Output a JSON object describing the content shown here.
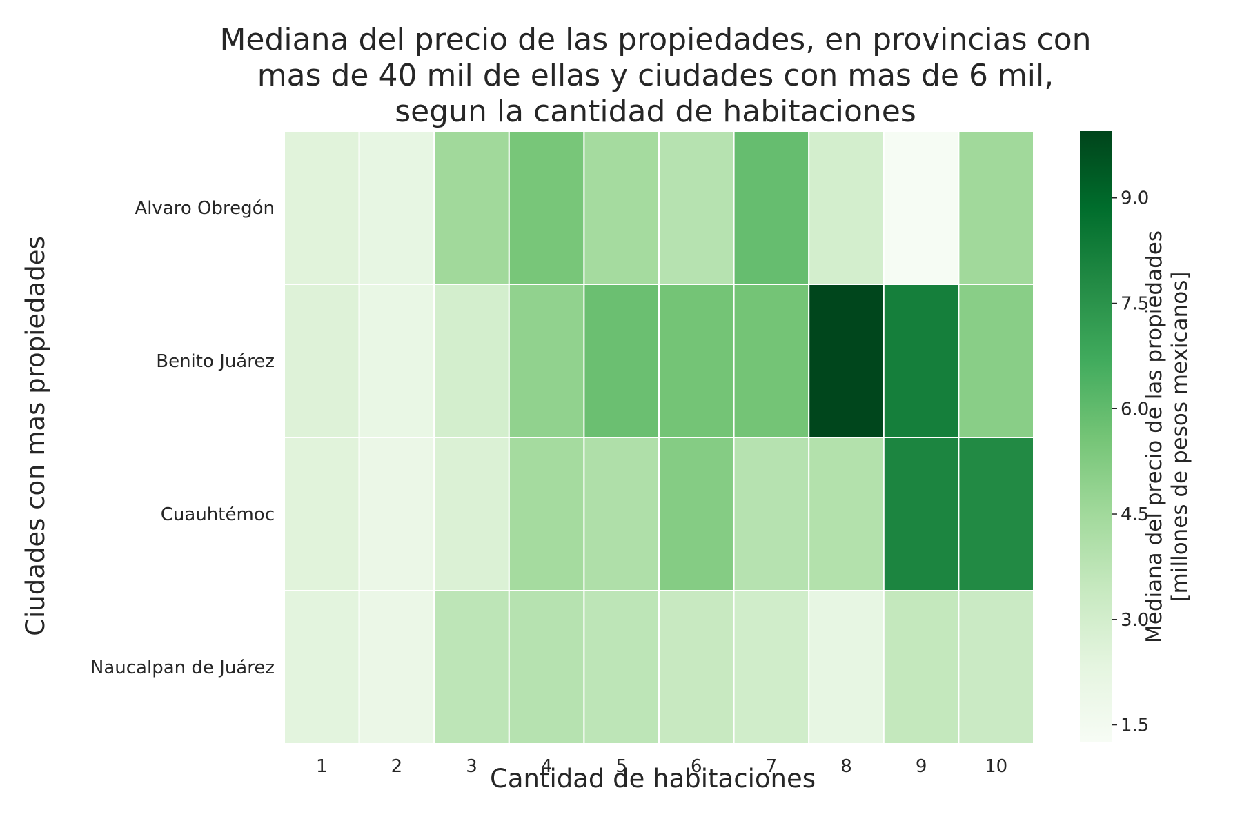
{
  "chart_data": {
    "type": "heatmap",
    "title": [
      "Mediana del precio de las propiedades, en provincias con",
      "mas de 40 mil de ellas y ciudades con mas de 6 mil,",
      "segun la cantidad de habitaciones"
    ],
    "xlabel": "Cantidad de habitaciones",
    "ylabel": "Ciudades con mas propiedades",
    "x_categories": [
      "1",
      "2",
      "3",
      "4",
      "5",
      "6",
      "7",
      "8",
      "9",
      "10"
    ],
    "y_categories": [
      "Alvaro Obregón",
      "Benito Juárez",
      "Cuauhtémoc",
      "Naucalpan de Juárez"
    ],
    "values": [
      [
        2.5,
        2.2,
        4.5,
        5.5,
        4.4,
        3.9,
        5.9,
        3.0,
        1.3,
        4.5
      ],
      [
        2.6,
        2.1,
        3.0,
        4.9,
        5.8,
        5.6,
        5.6,
        9.9,
        8.2,
        5.1
      ],
      [
        2.5,
        2.0,
        2.7,
        4.4,
        4.1,
        5.2,
        3.9,
        4.0,
        8.0,
        7.8
      ],
      [
        2.4,
        2.0,
        3.7,
        3.9,
        3.7,
        3.4,
        3.1,
        2.2,
        3.5,
        3.3
      ]
    ],
    "colorbar": {
      "label": [
        "Mediana del precio de las propiedades",
        "[millones de pesos mexicanos]"
      ],
      "ticks": [
        "1.5",
        "3.0",
        "4.5",
        "6.0",
        "7.5",
        "9.0"
      ],
      "range": [
        1.25,
        9.95
      ],
      "colormap": "Greens",
      "colors": [
        "#f7fcf5",
        "#e5f5e0",
        "#c7e9c0",
        "#a1d99b",
        "#74c476",
        "#41ab5d",
        "#238b45",
        "#006d2c",
        "#00441b"
      ]
    },
    "grid": false,
    "cell_border_color": "#ffffff"
  }
}
